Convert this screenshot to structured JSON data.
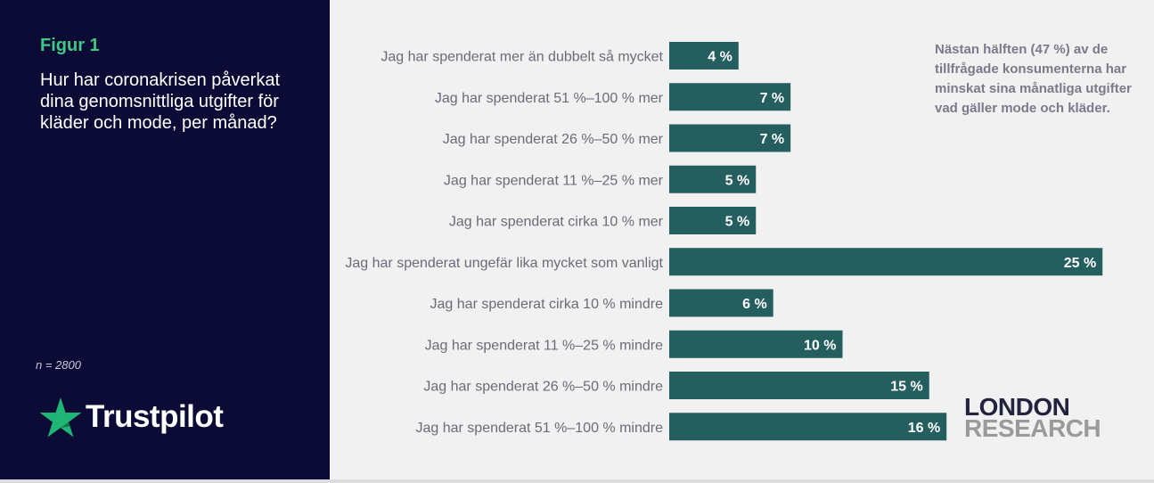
{
  "figure": {
    "label": "Figur 1",
    "question": "Hur har coronakrisen påverkat dina genomsnittliga utgifter för kläder och mode, per månad?",
    "sample_size": "n = 2800"
  },
  "brands": {
    "trustpilot": "Trustpilot",
    "london_research_line1": "LONDON",
    "london_research_line2": "RESEARCH"
  },
  "callout": "Nästan hälften (47 %) av de tillfrågade konsumenterna har minskat sina månatliga utgifter vad gäller mode och kläder.",
  "colors": {
    "bar": "#255e5e",
    "panel": "#0b0b36",
    "accent": "#40c980",
    "background": "#f1f1f1"
  },
  "chart_data": {
    "type": "bar",
    "orientation": "horizontal",
    "categories": [
      "Jag har spenderat mer än dubbelt så mycket",
      "Jag har spenderat 51 %–100 % mer",
      "Jag har spenderat 26 %–50 % mer",
      "Jag har spenderat 11 %–25 % mer",
      "Jag har spenderat cirka 10 % mer",
      "Jag har spenderat ungefär lika mycket som vanligt",
      "Jag har spenderat cirka 10 % mindre",
      "Jag har spenderat 11 %–25 % mindre",
      "Jag har spenderat 26 %–50 % mindre",
      "Jag har spenderat 51 %–100 % mindre"
    ],
    "values": [
      4,
      7,
      7,
      5,
      5,
      25,
      6,
      10,
      15,
      16
    ],
    "value_labels": [
      "4 %",
      "7 %",
      "7 %",
      "5 %",
      "5 %",
      "25 %",
      "6 %",
      "10 %",
      "15 %",
      "16 %"
    ],
    "unit": "%",
    "xlim": [
      0,
      25
    ],
    "grid": false,
    "legend": "none"
  }
}
